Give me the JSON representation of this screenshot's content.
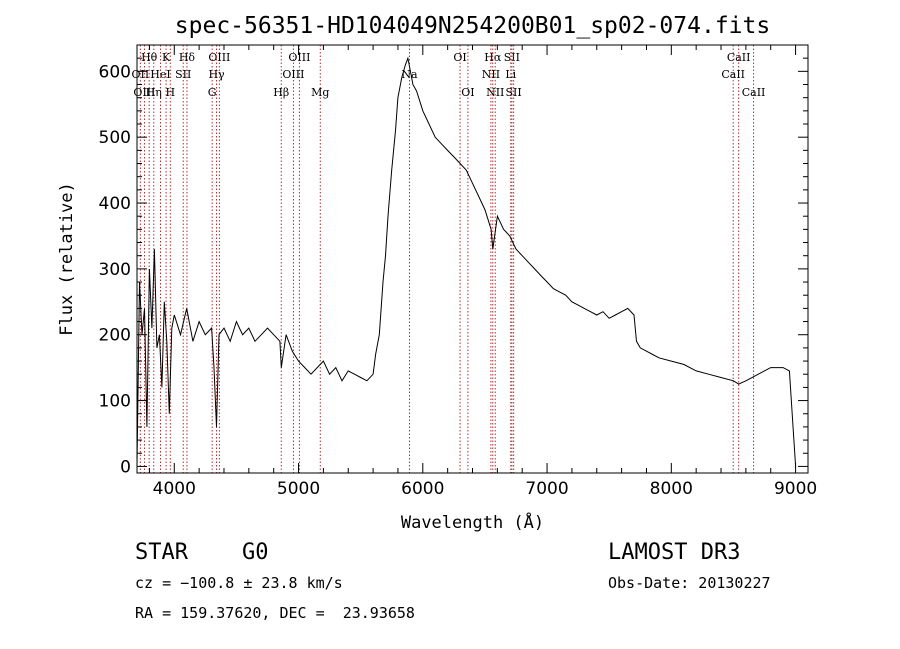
{
  "chart_data": {
    "type": "line",
    "title": "spec-56351-HD104049N254200B01_sp02-074.fits",
    "xlabel": "Wavelength (Å)",
    "ylabel": "Flux (relative)",
    "xlim": [
      3700,
      9100
    ],
    "ylim": [
      -10,
      640
    ],
    "x_ticks": [
      4000,
      5000,
      6000,
      7000,
      8000,
      9000
    ],
    "y_ticks": [
      0,
      100,
      200,
      300,
      400,
      500,
      600
    ],
    "series": [
      {
        "name": "spectrum",
        "x": [
          3700,
          3720,
          3740,
          3760,
          3780,
          3800,
          3820,
          3840,
          3860,
          3880,
          3900,
          3920,
          3940,
          3960,
          3980,
          4000,
          4050,
          4100,
          4150,
          4200,
          4250,
          4300,
          4320,
          4340,
          4360,
          4400,
          4450,
          4500,
          4550,
          4600,
          4650,
          4700,
          4750,
          4800,
          4850,
          4861,
          4900,
          4950,
          5000,
          5050,
          5100,
          5150,
          5200,
          5250,
          5300,
          5350,
          5400,
          5450,
          5500,
          5550,
          5600,
          5620,
          5650,
          5680,
          5700,
          5720,
          5750,
          5780,
          5800,
          5830,
          5860,
          5880,
          5900,
          5920,
          5950,
          6000,
          6050,
          6100,
          6150,
          6200,
          6250,
          6300,
          6350,
          6400,
          6450,
          6500,
          6550,
          6563,
          6600,
          6650,
          6700,
          6750,
          6800,
          6850,
          6900,
          6950,
          7000,
          7050,
          7100,
          7150,
          7200,
          7250,
          7300,
          7350,
          7400,
          7450,
          7500,
          7550,
          7600,
          7650,
          7700,
          7720,
          7750,
          7800,
          7850,
          7900,
          8000,
          8100,
          8200,
          8300,
          8400,
          8500,
          8542,
          8600,
          8700,
          8800,
          8900,
          8950,
          9000
        ],
        "values": [
          0,
          280,
          200,
          240,
          60,
          300,
          210,
          330,
          180,
          200,
          120,
          250,
          190,
          80,
          210,
          230,
          200,
          240,
          190,
          220,
          200,
          210,
          150,
          60,
          200,
          210,
          190,
          220,
          200,
          210,
          190,
          200,
          210,
          200,
          190,
          150,
          200,
          175,
          160,
          150,
          140,
          150,
          160,
          140,
          150,
          130,
          145,
          140,
          135,
          130,
          140,
          170,
          200,
          280,
          320,
          380,
          450,
          510,
          560,
          590,
          610,
          620,
          600,
          580,
          570,
          540,
          520,
          500,
          490,
          480,
          470,
          460,
          450,
          430,
          410,
          390,
          360,
          330,
          380,
          360,
          350,
          330,
          320,
          310,
          300,
          290,
          280,
          270,
          265,
          260,
          250,
          245,
          240,
          235,
          230,
          235,
          225,
          230,
          235,
          240,
          230,
          190,
          180,
          175,
          170,
          165,
          160,
          155,
          145,
          140,
          135,
          130,
          125,
          130,
          140,
          150,
          150,
          145,
          0
        ]
      }
    ],
    "line_markers": [
      {
        "label": "Hθ",
        "wavelength": 3798,
        "row": 1
      },
      {
        "label": "OII",
        "wavelength": 3727,
        "row": 2
      },
      {
        "label": "OIII",
        "wavelength": 3760,
        "row": 3
      },
      {
        "label": "K",
        "wavelength": 3934,
        "row": 1
      },
      {
        "label": "HeI",
        "wavelength": 3889,
        "row": 2
      },
      {
        "label": "Hη",
        "wavelength": 3835,
        "row": 3
      },
      {
        "label": "SII",
        "wavelength": 4072,
        "row": 2
      },
      {
        "label": "H",
        "wavelength": 3968,
        "row": 3
      },
      {
        "label": "Hδ",
        "wavelength": 4102,
        "row": 1
      },
      {
        "label": "OIII",
        "wavelength": 4363,
        "row": 1
      },
      {
        "label": "Hγ",
        "wavelength": 4340,
        "row": 2
      },
      {
        "label": "G",
        "wavelength": 4305,
        "row": 3
      },
      {
        "label": "Hβ",
        "wavelength": 4861,
        "row": 3
      },
      {
        "label": "OIII",
        "wavelength": 5007,
        "row": 1
      },
      {
        "label": "OIII",
        "wavelength": 4959,
        "row": 2
      },
      {
        "label": "Mg",
        "wavelength": 5175,
        "row": 3
      },
      {
        "label": "Na",
        "wavelength": 5893,
        "row": 2
      },
      {
        "label": "OI",
        "wavelength": 6300,
        "row": 1
      },
      {
        "label": "OI",
        "wavelength": 6363,
        "row": 3
      },
      {
        "label": "Hα",
        "wavelength": 6563,
        "row": 1
      },
      {
        "label": "NII",
        "wavelength": 6548,
        "row": 2
      },
      {
        "label": "NII",
        "wavelength": 6583,
        "row": 3
      },
      {
        "label": "SII",
        "wavelength": 6717,
        "row": 1
      },
      {
        "label": "Li",
        "wavelength": 6708,
        "row": 2
      },
      {
        "label": "SII",
        "wavelength": 6731,
        "row": 3
      },
      {
        "label": "CaII",
        "wavelength": 8542,
        "row": 1
      },
      {
        "label": "CaII",
        "wavelength": 8498,
        "row": 2
      },
      {
        "label": "CaII",
        "wavelength": 8662,
        "row": 3
      }
    ]
  },
  "info": {
    "class_label": "STAR",
    "subclass": "G0",
    "survey": "LAMOST DR3",
    "cz": "cz = −100.8 ± 23.8 km/s",
    "obs_date": "Obs-Date: 20130227",
    "coords": "RA = 159.37620, DEC =  23.93658"
  },
  "colors": {
    "spectrum": "#000000",
    "marker_line": "#b03030",
    "frame": "#000000"
  }
}
